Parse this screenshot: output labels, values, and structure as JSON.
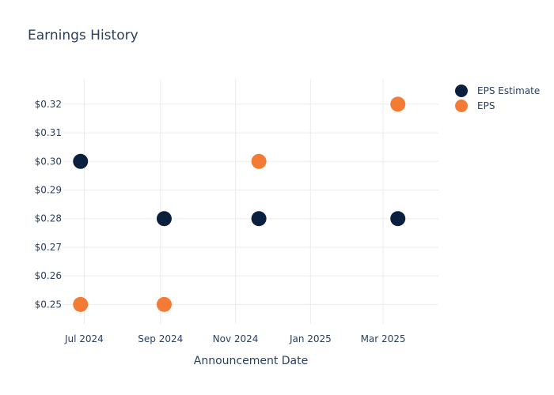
{
  "chart_data": {
    "type": "scatter",
    "title": "Earnings History",
    "xlabel": "Announcement Date",
    "ylabel": "",
    "x_ticks": [
      "Jul 2024",
      "Sep 2024",
      "Nov 2024",
      "Jan 2025",
      "Mar 2025"
    ],
    "x_tick_dates": [
      "2024-07-01",
      "2024-09-01",
      "2024-11-01",
      "2025-01-01",
      "2025-03-01"
    ],
    "xlim": [
      "2024-06-14",
      "2025-04-15"
    ],
    "y_ticks": [
      "$0.25",
      "$0.26",
      "$0.27",
      "$0.28",
      "$0.29",
      "$0.30",
      "$0.31",
      "$0.32"
    ],
    "y_tick_values": [
      0.25,
      0.26,
      0.27,
      0.28,
      0.29,
      0.3,
      0.31,
      0.32
    ],
    "ylim": [
      0.2432,
      0.3288
    ],
    "grid": true,
    "legend_position": "top-right",
    "series": [
      {
        "name": "EPS Estimate",
        "color": "#0b1f3f",
        "x": [
          "2024-06-28",
          "2024-09-04",
          "2024-11-20",
          "2025-03-13"
        ],
        "y": [
          0.3,
          0.28,
          0.28,
          0.28
        ]
      },
      {
        "name": "EPS",
        "color": "#f47b35",
        "x": [
          "2024-06-28",
          "2024-09-04",
          "2024-11-20",
          "2025-03-13"
        ],
        "y": [
          0.25,
          0.25,
          0.3,
          0.32
        ]
      }
    ]
  }
}
